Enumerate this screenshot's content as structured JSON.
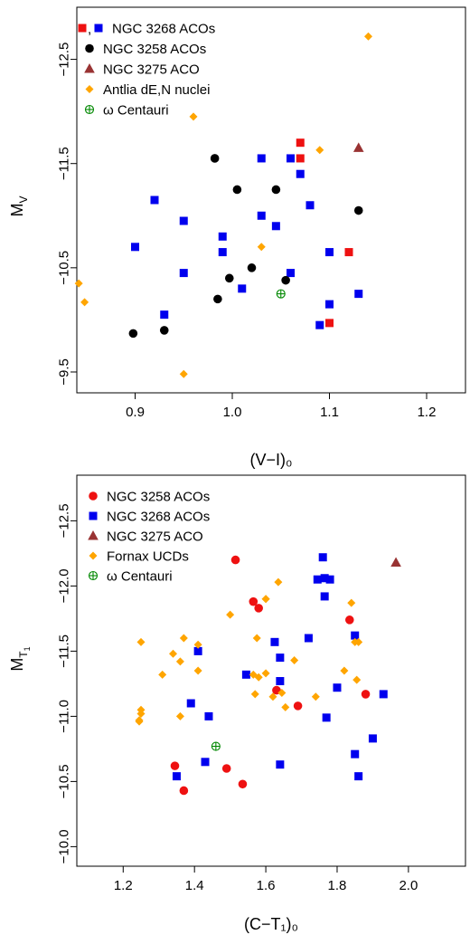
{
  "chart_data": [
    {
      "type": "scatter",
      "xlabel": "(V−I)₀",
      "ylabel": "M",
      "ylabel_sub": "V",
      "xlim": [
        0.84,
        1.24
      ],
      "ylim": [
        -9.3,
        -13.0
      ],
      "xticks": [
        "0.9",
        "1.0",
        "1.1",
        "1.2"
      ],
      "xtick_values": [
        0.9,
        1.0,
        1.1,
        1.2
      ],
      "yticks": [
        "−12.5",
        "−11.5",
        "−10.5",
        "−9.5"
      ],
      "ytick_values": [
        -12.5,
        -11.5,
        -10.5,
        -9.5
      ],
      "legend_position": "top-left",
      "series": [
        {
          "name": "NGC 3268 ACOs",
          "marker": "square",
          "color": "#0000ee",
          "points": [
            [
              0.92,
              -11.15
            ],
            [
              0.95,
              -10.95
            ],
            [
              0.9,
              -10.7
            ],
            [
              0.95,
              -10.45
            ],
            [
              0.93,
              -10.05
            ],
            [
              0.99,
              -10.8
            ],
            [
              0.99,
              -10.65
            ],
            [
              1.01,
              -10.3
            ],
            [
              1.03,
              -11.55
            ],
            [
              1.03,
              -11.0
            ],
            [
              1.045,
              -10.9
            ],
            [
              1.06,
              -11.55
            ],
            [
              1.07,
              -11.4
            ],
            [
              1.08,
              -11.1
            ],
            [
              1.06,
              -10.45
            ],
            [
              1.1,
              -10.65
            ],
            [
              1.1,
              -10.15
            ],
            [
              1.09,
              -9.95
            ],
            [
              1.13,
              -10.25
            ]
          ]
        },
        {
          "name": "NGC 3268 ACOs",
          "marker": "square",
          "color": "#ee1111",
          "points": [
            [
              1.07,
              -11.7
            ],
            [
              1.07,
              -11.55
            ],
            [
              1.12,
              -10.65
            ],
            [
              1.1,
              -9.97
            ]
          ]
        },
        {
          "name": "NGC 3258 ACOs",
          "marker": "circle",
          "color": "#000000",
          "points": [
            [
              0.982,
              -11.55
            ],
            [
              1.005,
              -11.25
            ],
            [
              1.045,
              -11.25
            ],
            [
              1.13,
              -11.05
            ],
            [
              1.02,
              -10.5
            ],
            [
              0.997,
              -10.4
            ],
            [
              0.985,
              -10.2
            ],
            [
              0.93,
              -9.9
            ],
            [
              0.898,
              -9.87
            ],
            [
              1.055,
              -10.38
            ]
          ]
        },
        {
          "name": "NGC 3275 ACO",
          "marker": "triangle",
          "color": "#993333",
          "points": [
            [
              1.13,
              -11.65
            ]
          ]
        },
        {
          "name": "Antlia dE,N nuclei",
          "marker": "diamond",
          "color": "#ffa500",
          "points": [
            [
              1.14,
              -12.72
            ],
            [
              0.96,
              -11.95
            ],
            [
              1.09,
              -11.63
            ],
            [
              1.03,
              -10.7
            ],
            [
              0.842,
              -10.35
            ],
            [
              0.848,
              -10.17
            ],
            [
              0.95,
              -9.48
            ]
          ]
        },
        {
          "name": "ω Centauri",
          "marker": "circle-cross",
          "color": "#008800",
          "points": [
            [
              1.05,
              -10.25
            ]
          ]
        }
      ]
    },
    {
      "type": "scatter",
      "xlabel": "(C−T₁)₀",
      "ylabel": "M",
      "ylabel_sub": "T",
      "ylabel_subsub": "1",
      "xlim": [
        1.07,
        2.16
      ],
      "ylim": [
        -9.85,
        -12.85
      ],
      "xticks": [
        "1.2",
        "1.4",
        "1.6",
        "1.8",
        "2.0"
      ],
      "xtick_values": [
        1.2,
        1.4,
        1.6,
        1.8,
        2.0
      ],
      "yticks": [
        "−12.5",
        "−12.0",
        "−11.5",
        "−11.0",
        "−10.5",
        "−10.0"
      ],
      "ytick_values": [
        -12.5,
        -12.0,
        -11.5,
        -11.0,
        -10.5,
        -10.0
      ],
      "legend_position": "top-left",
      "series": [
        {
          "name": "NGC 3258 ACOs",
          "marker": "circle",
          "color": "#ee1111",
          "points": [
            [
              1.515,
              -12.2
            ],
            [
              1.565,
              -11.88
            ],
            [
              1.58,
              -11.83
            ],
            [
              1.835,
              -11.74
            ],
            [
              1.63,
              -11.2
            ],
            [
              1.69,
              -11.08
            ],
            [
              1.88,
              -11.17
            ],
            [
              1.345,
              -10.62
            ],
            [
              1.49,
              -10.6
            ],
            [
              1.535,
              -10.48
            ],
            [
              1.37,
              -10.43
            ]
          ]
        },
        {
          "name": "NGC 3268 ACOs",
          "marker": "square",
          "color": "#0000ee",
          "points": [
            [
              1.76,
              -12.22
            ],
            [
              1.745,
              -12.05
            ],
            [
              1.765,
              -12.06
            ],
            [
              1.78,
              -12.05
            ],
            [
              1.765,
              -11.92
            ],
            [
              1.72,
              -11.6
            ],
            [
              1.85,
              -11.62
            ],
            [
              1.41,
              -11.5
            ],
            [
              1.625,
              -11.57
            ],
            [
              1.64,
              -11.45
            ],
            [
              1.545,
              -11.32
            ],
            [
              1.64,
              -11.27
            ],
            [
              1.8,
              -11.22
            ],
            [
              1.39,
              -11.1
            ],
            [
              1.44,
              -11.0
            ],
            [
              1.77,
              -10.99
            ],
            [
              1.93,
              -11.17
            ],
            [
              1.9,
              -10.83
            ],
            [
              1.85,
              -10.71
            ],
            [
              1.43,
              -10.65
            ],
            [
              1.64,
              -10.63
            ],
            [
              1.35,
              -10.54
            ],
            [
              1.86,
              -10.54
            ]
          ]
        },
        {
          "name": "NGC 3275 ACO",
          "marker": "triangle",
          "color": "#993333",
          "points": [
            [
              1.965,
              -12.18
            ]
          ]
        },
        {
          "name": "Fornax UCDs",
          "marker": "diamond",
          "color": "#ffa500",
          "points": [
            [
              1.635,
              -12.03
            ],
            [
              1.6,
              -11.9
            ],
            [
              1.6,
              -11.9
            ],
            [
              1.84,
              -11.87
            ],
            [
              1.5,
              -11.78
            ],
            [
              1.575,
              -11.6
            ],
            [
              1.37,
              -11.6
            ],
            [
              1.25,
              -11.57
            ],
            [
              1.41,
              -11.55
            ],
            [
              1.85,
              -11.57
            ],
            [
              1.86,
              -11.57
            ],
            [
              1.34,
              -11.48
            ],
            [
              1.68,
              -11.43
            ],
            [
              1.36,
              -11.42
            ],
            [
              1.41,
              -11.35
            ],
            [
              1.565,
              -11.32
            ],
            [
              1.6,
              -11.33
            ],
            [
              1.82,
              -11.35
            ],
            [
              1.31,
              -11.32
            ],
            [
              1.58,
              -11.3
            ],
            [
              1.855,
              -11.28
            ],
            [
              1.645,
              -11.18
            ],
            [
              1.57,
              -11.17
            ],
            [
              1.62,
              -11.15
            ],
            [
              1.36,
              -11.0
            ],
            [
              1.655,
              -11.07
            ],
            [
              1.74,
              -11.15
            ],
            [
              1.25,
              -11.05
            ],
            [
              1.25,
              -11.02
            ],
            [
              1.245,
              -10.96
            ],
            [
              1.245,
              -10.97
            ]
          ]
        },
        {
          "name": "ω Centauri",
          "marker": "circle-cross",
          "color": "#008800",
          "points": [
            [
              1.46,
              -10.77
            ]
          ]
        }
      ]
    }
  ],
  "legends": [
    [
      {
        "label": "NGC 3268 ACOs",
        "marker": "square",
        "color": "#0000ee",
        "extra_marker": "square",
        "extra_color": "#ee1111",
        "extra_text": ","
      },
      {
        "label": "NGC 3258 ACOs",
        "marker": "circle",
        "color": "#000000"
      },
      {
        "label": "NGC 3275 ACO",
        "marker": "triangle",
        "color": "#993333"
      },
      {
        "label": "Antlia dE,N nuclei",
        "marker": "diamond",
        "color": "#ffa500"
      },
      {
        "label": "ω Centauri",
        "marker": "circle-cross",
        "color": "#008800"
      }
    ],
    [
      {
        "label": "NGC 3258 ACOs",
        "marker": "circle",
        "color": "#ee1111"
      },
      {
        "label": "NGC 3268 ACOs",
        "marker": "square",
        "color": "#0000ee"
      },
      {
        "label": "NGC 3275 ACO",
        "marker": "triangle",
        "color": "#993333"
      },
      {
        "label": "Fornax UCDs",
        "marker": "diamond",
        "color": "#ffa500"
      },
      {
        "label": "ω Centauri",
        "marker": "circle-cross",
        "color": "#008800"
      }
    ]
  ]
}
